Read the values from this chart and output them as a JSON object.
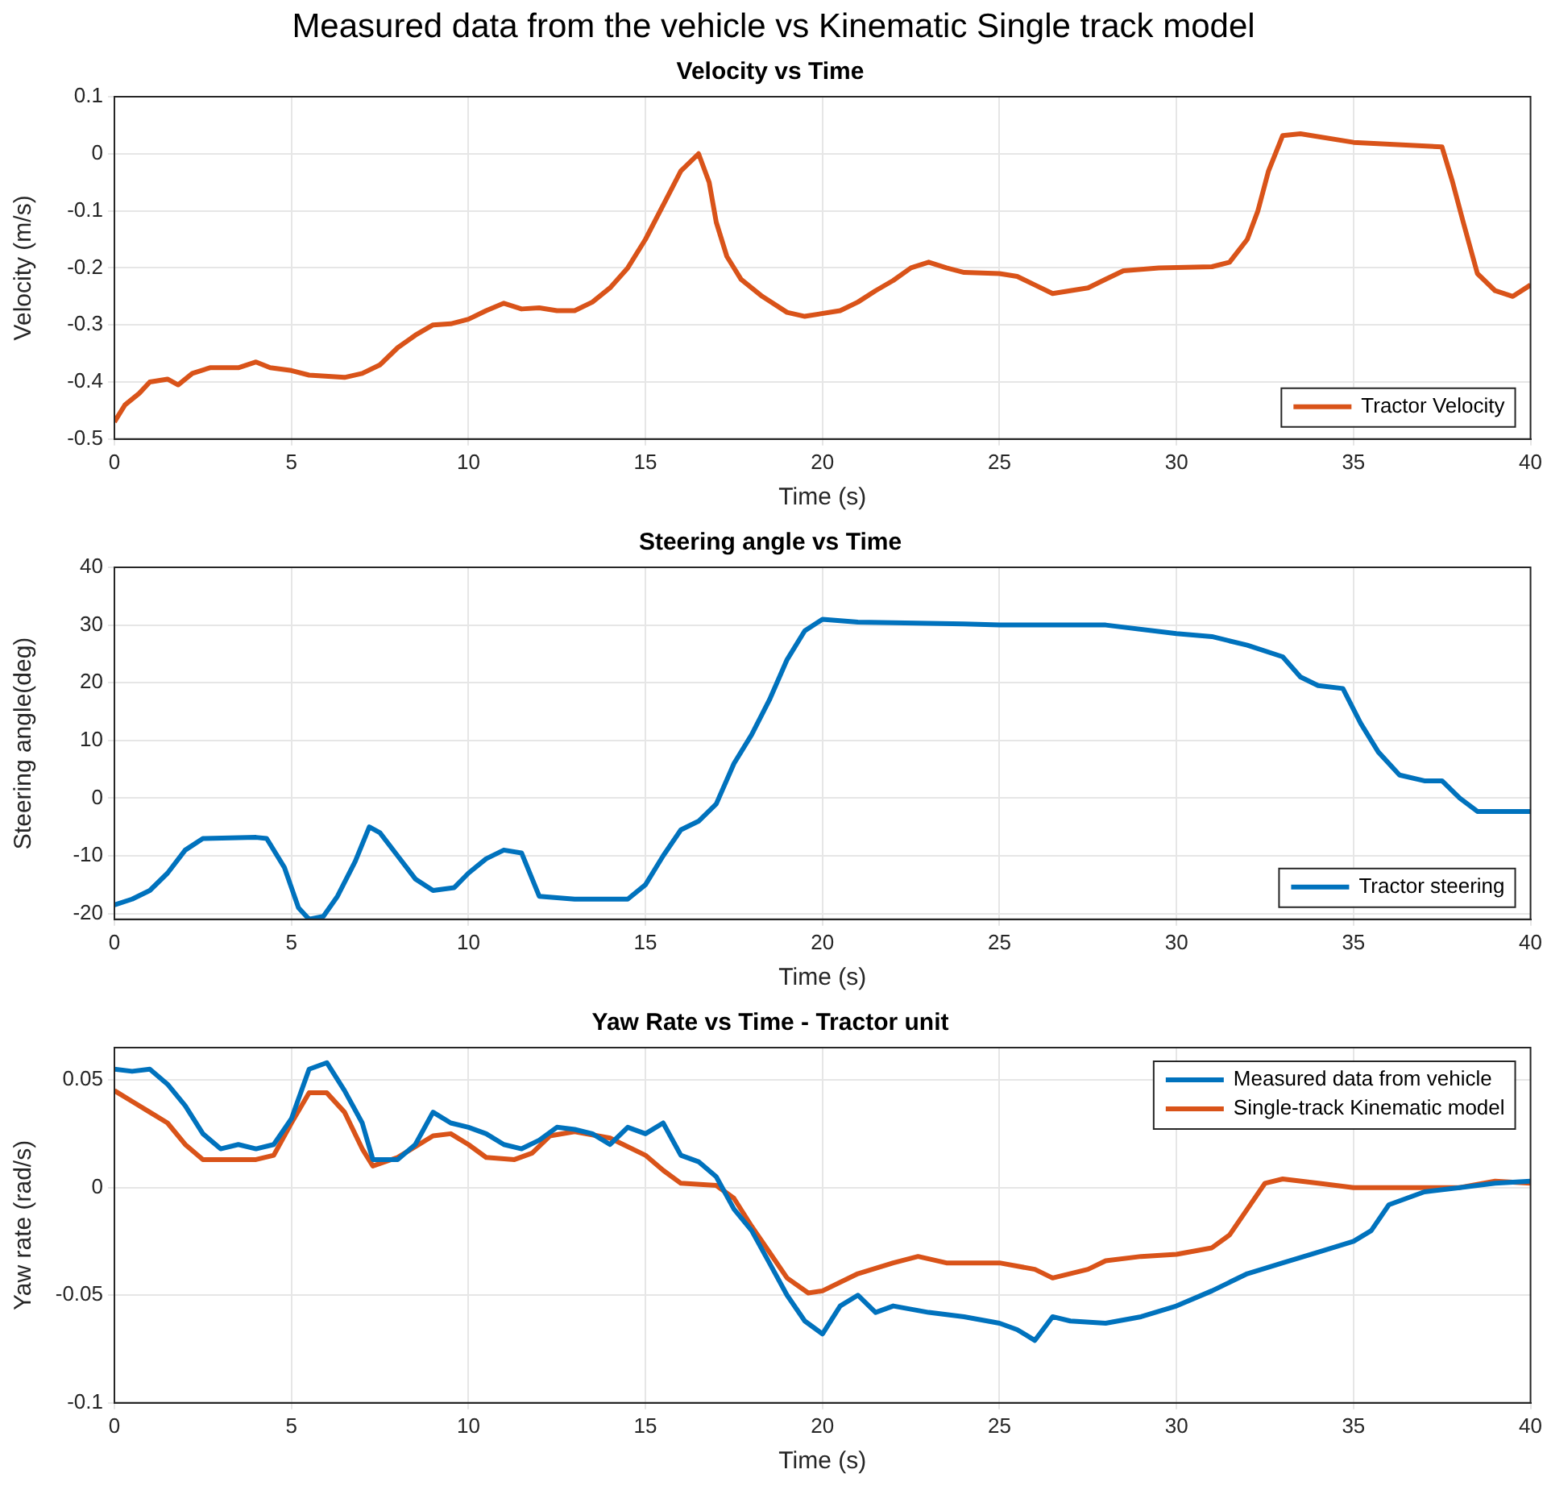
{
  "chart_data": [
    {
      "type": "line",
      "title": "Velocity vs Time",
      "xlabel": "Time (s)",
      "ylabel": "Velocity (m/s)",
      "annotations": [
        "Measured data from the vehicle vs Kinematic Single track model"
      ],
      "xlim": [
        0,
        40
      ],
      "xticks": [
        0,
        5,
        10,
        15,
        20,
        25,
        30,
        35,
        40
      ],
      "ylim": [
        -0.5,
        0.1
      ],
      "yticks": [
        -0.5,
        -0.4,
        -0.3,
        -0.2,
        -0.1,
        0,
        0.1
      ],
      "grid": true,
      "legend": "bottom right",
      "line_style": "solid",
      "series": [
        {
          "name": "Tractor Velocity",
          "color": "#d95319",
          "x": [
            0,
            0.3,
            0.7,
            1,
            1.5,
            1.8,
            2.2,
            2.7,
            3.5,
            4,
            4.4,
            5,
            5.5,
            6.5,
            7,
            7.5,
            8,
            8.5,
            9,
            9.5,
            10,
            10.5,
            11,
            11.5,
            12,
            12.5,
            13,
            13.5,
            14,
            14.5,
            15,
            15.5,
            16,
            16.5,
            16.8,
            17,
            17.3,
            17.7,
            18.3,
            19,
            19.5,
            20.5,
            21,
            21.5,
            22,
            22.5,
            23,
            23.5,
            24,
            25,
            25.5,
            26,
            26.5,
            27.5,
            28,
            28.5,
            29.5,
            31,
            31.5,
            32,
            32.3,
            32.6,
            33,
            33.5,
            35,
            37.5,
            37.8,
            38.1,
            38.5,
            39,
            39.5,
            40
          ],
          "values": [
            -0.47,
            -0.44,
            -0.42,
            -0.4,
            -0.395,
            -0.405,
            -0.385,
            -0.375,
            -0.375,
            -0.365,
            -0.375,
            -0.38,
            -0.388,
            -0.392,
            -0.385,
            -0.37,
            -0.34,
            -0.318,
            -0.3,
            -0.298,
            -0.29,
            -0.275,
            -0.262,
            -0.272,
            -0.27,
            -0.275,
            -0.275,
            -0.26,
            -0.235,
            -0.2,
            -0.15,
            -0.09,
            -0.03,
            0,
            -0.05,
            -0.12,
            -0.18,
            -0.22,
            -0.25,
            -0.278,
            -0.285,
            -0.275,
            -0.26,
            -0.24,
            -0.222,
            -0.2,
            -0.19,
            -0.2,
            -0.208,
            -0.21,
            -0.215,
            -0.23,
            -0.245,
            -0.235,
            -0.22,
            -0.205,
            -0.2,
            -0.198,
            -0.19,
            -0.15,
            -0.1,
            -0.03,
            0.032,
            0.035,
            0.02,
            0.012,
            -0.05,
            -0.12,
            -0.21,
            -0.24,
            -0.25,
            -0.23
          ]
        }
      ]
    },
    {
      "type": "line",
      "title": "Steering angle vs Time",
      "xlabel": "Time (s)",
      "ylabel": "Steering angle(deg)",
      "xlim": [
        0,
        40
      ],
      "xticks": [
        0,
        5,
        10,
        15,
        20,
        25,
        30,
        35,
        40
      ],
      "ylim": [
        -21,
        40
      ],
      "yticks": [
        -20,
        -10,
        0,
        10,
        20,
        30,
        40
      ],
      "grid": true,
      "legend": "bottom right",
      "line_style": "solid",
      "series": [
        {
          "name": "Tractor steering",
          "color": "#0072bd",
          "x": [
            0,
            0.5,
            1,
            1.5,
            2,
            2.5,
            4,
            4.3,
            4.8,
            5.2,
            5.5,
            5.9,
            6.3,
            6.8,
            7.2,
            7.5,
            8,
            8.5,
            9,
            9.6,
            10,
            10.5,
            11,
            11.5,
            12,
            13,
            14.5,
            15,
            15.5,
            16,
            16.5,
            17,
            17.5,
            18,
            18.5,
            19,
            19.5,
            20,
            21,
            24,
            25,
            28,
            30,
            31,
            32,
            33,
            33.5,
            34,
            34.7,
            35.2,
            35.7,
            36.3,
            37,
            37.5,
            38,
            38.5,
            40
          ],
          "values": [
            -18.5,
            -17.5,
            -16,
            -13,
            -9,
            -7,
            -6.8,
            -7,
            -12,
            -19,
            -21,
            -20.5,
            -17,
            -11,
            -5,
            -6,
            -10,
            -14,
            -16,
            -15.5,
            -13,
            -10.5,
            -9,
            -9.5,
            -17,
            -17.5,
            -17.5,
            -15,
            -10,
            -5.5,
            -4,
            -1,
            6,
            11,
            17,
            24,
            29,
            31,
            30.5,
            30.2,
            30,
            30,
            28.5,
            28,
            26.5,
            24.5,
            21,
            19.5,
            19,
            13,
            8,
            4,
            3,
            3,
            0,
            -2.3,
            -2.3
          ]
        }
      ]
    },
    {
      "type": "line",
      "title": "Yaw Rate vs Time - Tractor unit",
      "xlabel": "Time (s)",
      "ylabel": "Yaw rate (rad/s)",
      "xlim": [
        0,
        40
      ],
      "xticks": [
        0,
        5,
        10,
        15,
        20,
        25,
        30,
        35,
        40
      ],
      "ylim": [
        -0.1,
        0.065
      ],
      "yticks": [
        -0.1,
        -0.05,
        0,
        0.05
      ],
      "grid": true,
      "legend": "top right",
      "line_style": "solid",
      "series": [
        {
          "name": "Measured data from vehicle",
          "color": "#0072bd",
          "x": [
            0,
            0.5,
            1,
            1.5,
            2,
            2.5,
            3,
            3.5,
            4,
            4.5,
            5,
            5.5,
            6,
            6.5,
            7,
            7.3,
            8,
            8.5,
            9,
            9.5,
            10,
            10.5,
            11,
            11.5,
            12,
            12.5,
            13,
            13.5,
            14,
            14.5,
            15,
            15.5,
            16,
            16.5,
            17,
            17.5,
            18,
            18.5,
            19,
            19.5,
            20,
            20.5,
            21,
            21.5,
            22,
            23,
            24,
            25,
            25.5,
            26,
            26.5,
            27,
            28,
            29,
            30,
            31,
            32,
            33,
            34,
            35,
            35.5,
            36,
            37,
            38,
            39,
            40
          ],
          "values": [
            0.055,
            0.054,
            0.055,
            0.048,
            0.038,
            0.025,
            0.018,
            0.02,
            0.018,
            0.02,
            0.032,
            0.055,
            0.058,
            0.045,
            0.03,
            0.013,
            0.013,
            0.02,
            0.035,
            0.03,
            0.028,
            0.025,
            0.02,
            0.018,
            0.022,
            0.028,
            0.027,
            0.025,
            0.02,
            0.028,
            0.025,
            0.03,
            0.015,
            0.012,
            0.005,
            -0.01,
            -0.02,
            -0.035,
            -0.05,
            -0.062,
            -0.068,
            -0.055,
            -0.05,
            -0.058,
            -0.055,
            -0.058,
            -0.06,
            -0.063,
            -0.066,
            -0.071,
            -0.06,
            -0.062,
            -0.063,
            -0.06,
            -0.055,
            -0.048,
            -0.04,
            -0.035,
            -0.03,
            -0.025,
            -0.02,
            -0.008,
            -0.002,
            0,
            0.002,
            0.003
          ]
        },
        {
          "name": "Single-track Kinematic model",
          "color": "#d95319",
          "x": [
            0,
            0.5,
            1,
            1.5,
            2,
            2.5,
            4,
            4.5,
            5,
            5.5,
            6,
            6.5,
            7,
            7.3,
            8,
            9,
            9.5,
            10,
            10.5,
            11.3,
            11.8,
            12.3,
            13,
            14,
            15,
            15.5,
            16,
            17,
            17.5,
            18,
            18.5,
            19,
            19.6,
            20,
            21,
            22,
            22.7,
            23.5,
            25,
            26,
            26.5,
            27.5,
            28,
            29,
            30,
            31,
            31.5,
            32,
            32.5,
            33,
            34,
            35,
            38,
            39,
            40
          ],
          "values": [
            0.045,
            0.04,
            0.035,
            0.03,
            0.02,
            0.013,
            0.013,
            0.015,
            0.03,
            0.044,
            0.044,
            0.035,
            0.018,
            0.01,
            0.014,
            0.024,
            0.025,
            0.02,
            0.014,
            0.013,
            0.016,
            0.024,
            0.026,
            0.023,
            0.015,
            0.008,
            0.002,
            0.001,
            -0.005,
            -0.018,
            -0.03,
            -0.042,
            -0.049,
            -0.048,
            -0.04,
            -0.035,
            -0.032,
            -0.035,
            -0.035,
            -0.038,
            -0.042,
            -0.038,
            -0.034,
            -0.032,
            -0.031,
            -0.028,
            -0.022,
            -0.01,
            0.002,
            0.004,
            0.002,
            0,
            0,
            0.003,
            0.002
          ]
        }
      ]
    }
  ]
}
